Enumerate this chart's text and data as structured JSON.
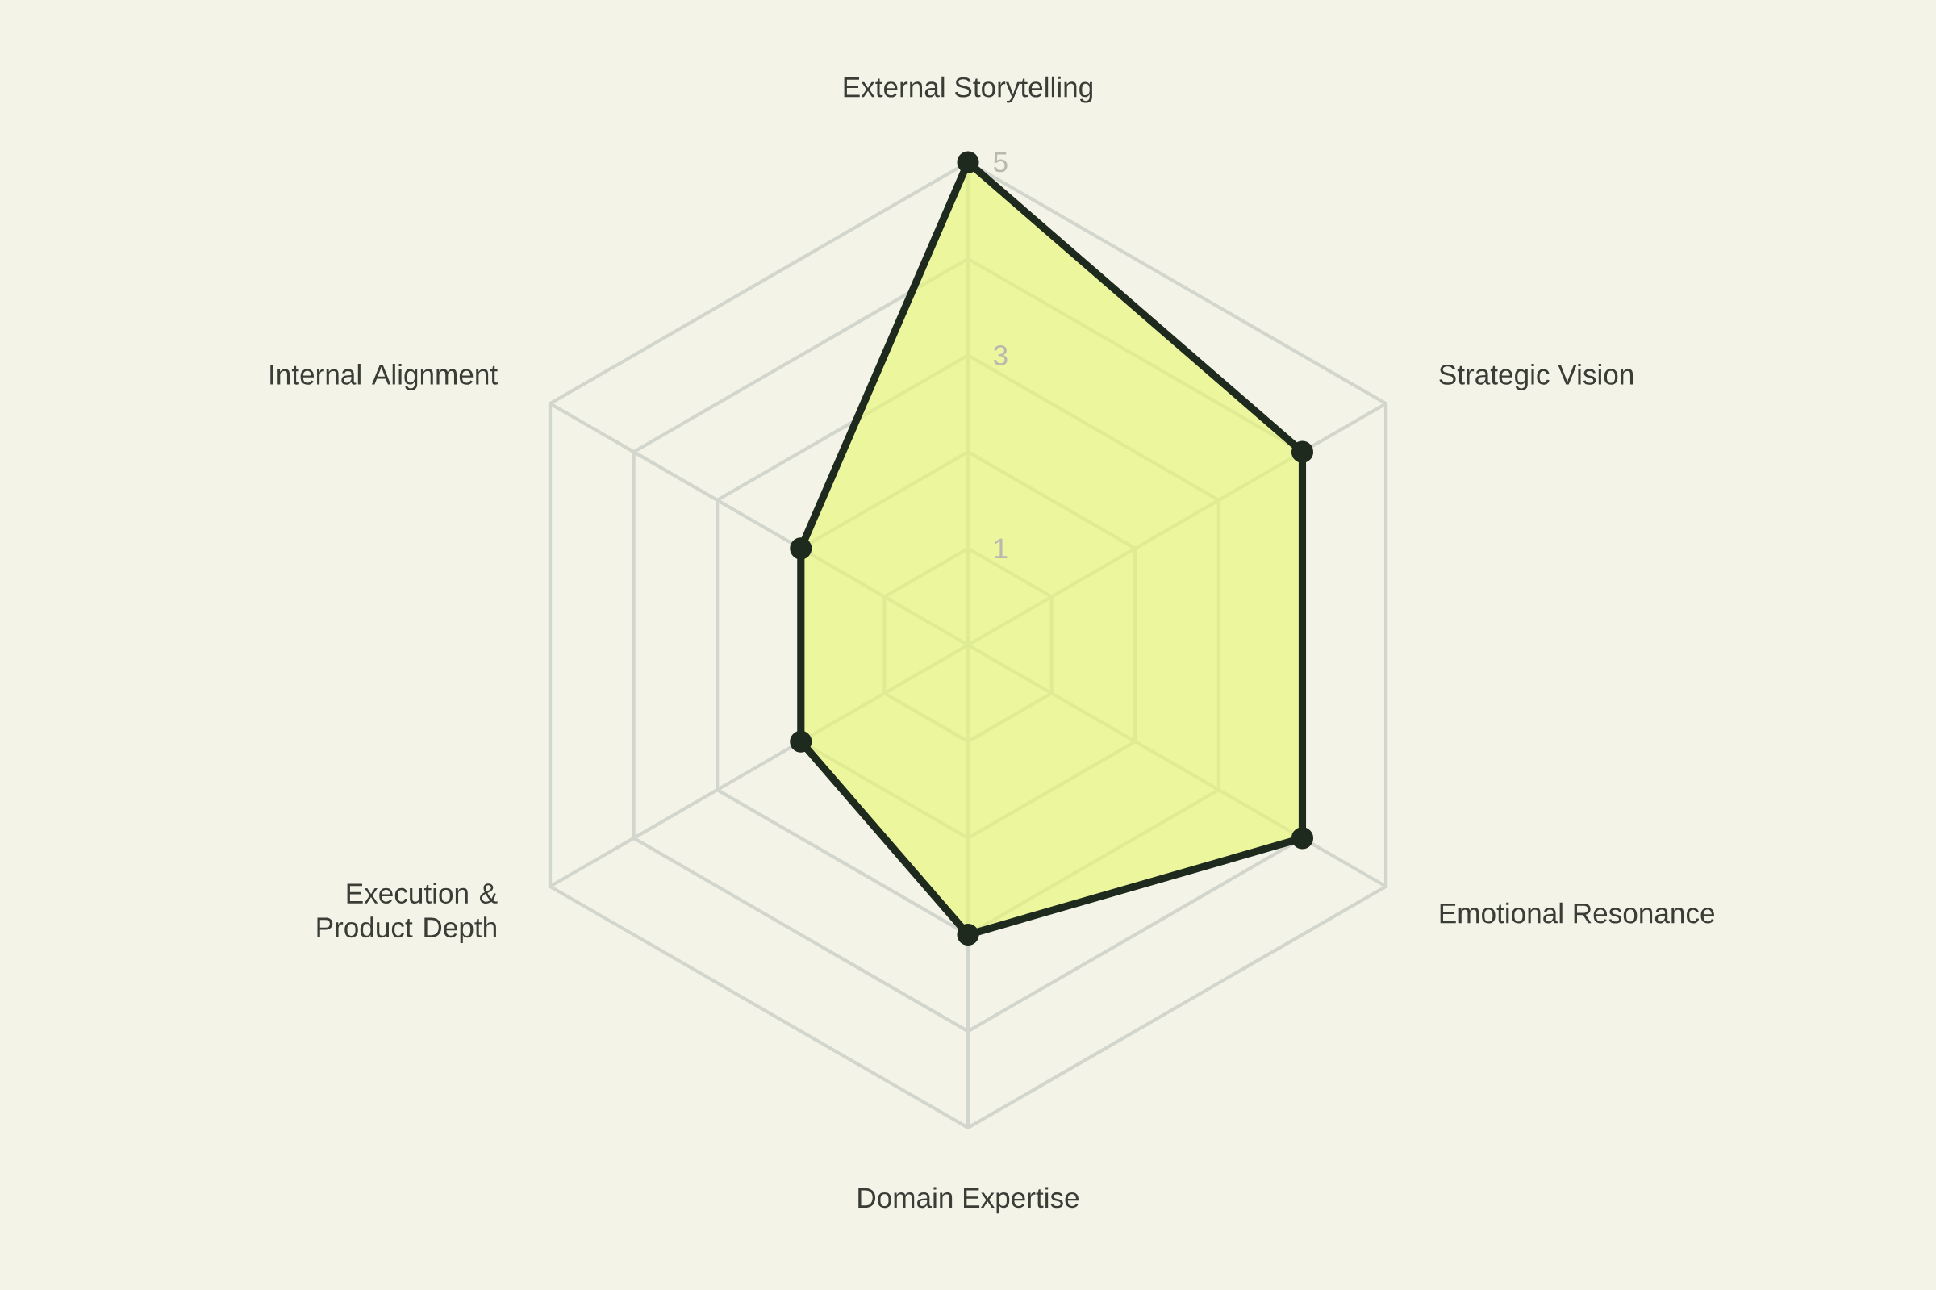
{
  "chart_data": {
    "type": "radar",
    "categories": [
      "External Storytelling",
      "Strategic Vision",
      "Emotional Resonance",
      "Domain Expertise",
      "Execution & Product Depth",
      "Internal Alignment"
    ],
    "series": [
      {
        "color": "#e6f774",
        "values": [
          5,
          4,
          4,
          3,
          2,
          2
        ]
      }
    ],
    "ylim": [
      0,
      5
    ],
    "yticks": [
      1,
      3,
      5
    ],
    "grid": true,
    "marker": "circle",
    "line_style": "solid"
  }
}
